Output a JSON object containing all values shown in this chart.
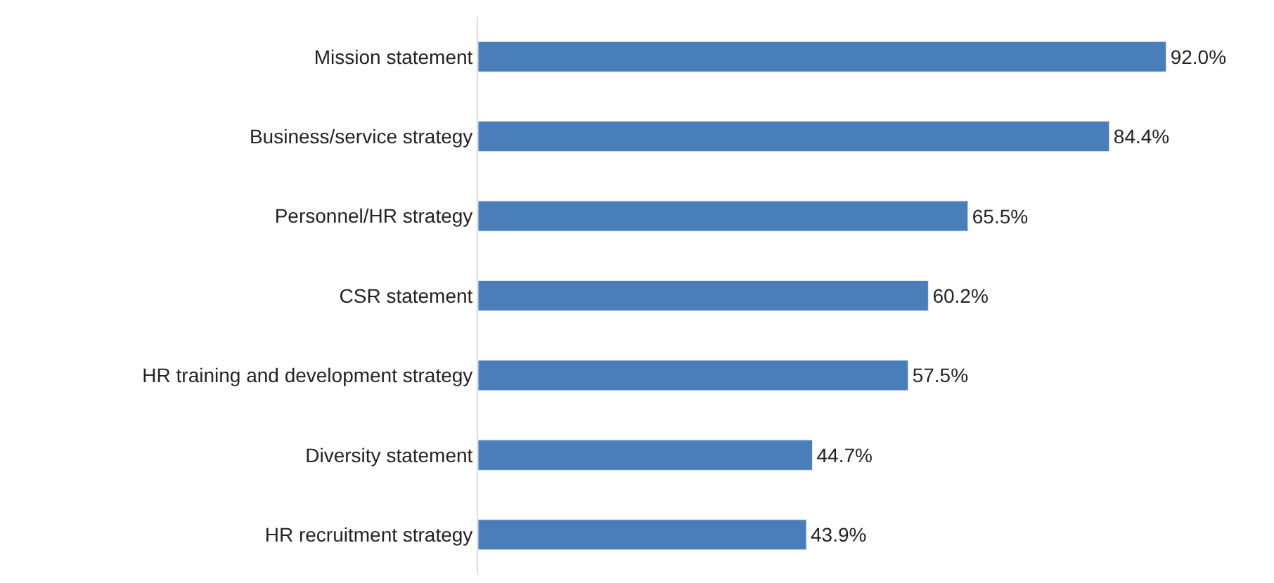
{
  "chart_data": {
    "type": "bar",
    "orientation": "horizontal",
    "categories": [
      "Mission statement",
      "Business/service strategy",
      "Personnel/HR strategy",
      "CSR statement",
      "HR training and development strategy",
      "Diversity statement",
      "HR recruitment strategy"
    ],
    "values": [
      92.0,
      84.4,
      65.5,
      60.2,
      57.5,
      44.7,
      43.9
    ],
    "value_labels": [
      "92.0%",
      "84.4%",
      "65.5%",
      "60.2%",
      "57.5%",
      "44.7%",
      "43.9%"
    ],
    "color": "#4a7ebb",
    "tick_labels": "y"
  }
}
